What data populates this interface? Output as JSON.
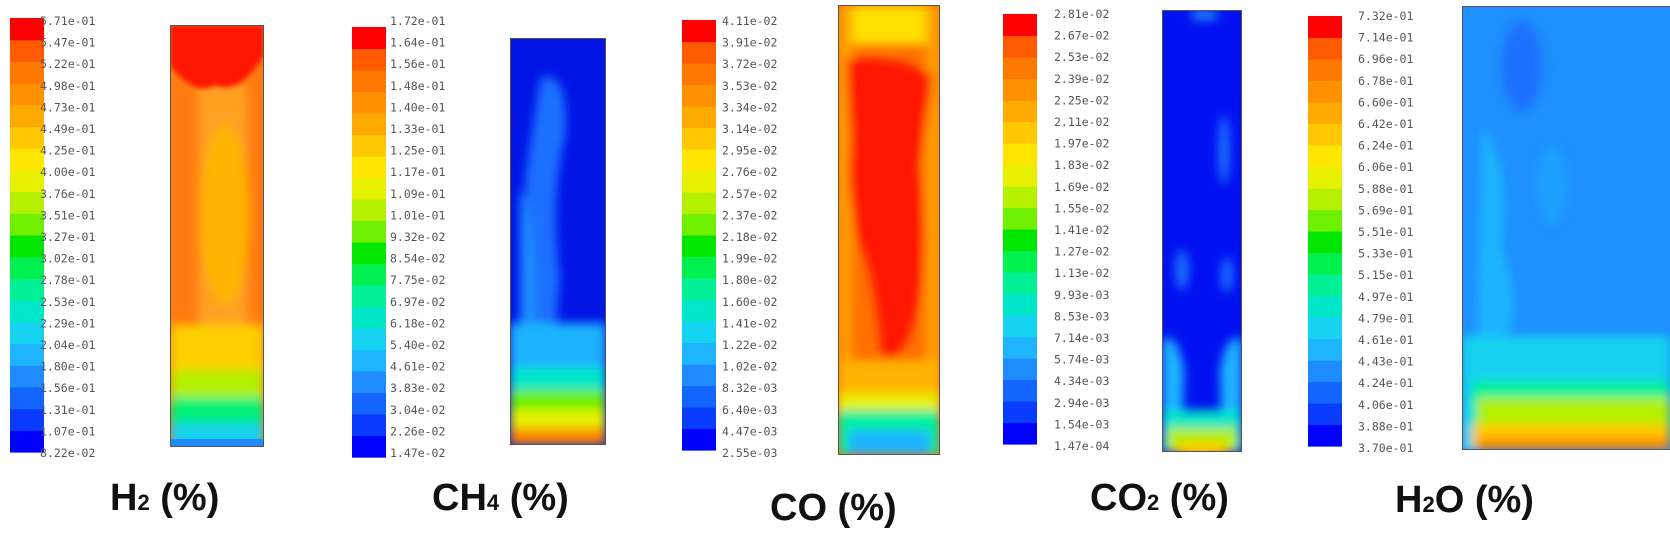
{
  "palette": [
    "#0000ff",
    "#0a3cff",
    "#1464ff",
    "#1e8cff",
    "#1eb4ff",
    "#14d2f0",
    "#00e6c8",
    "#00f096",
    "#00f050",
    "#00e600",
    "#6ef000",
    "#b4f000",
    "#e6f000",
    "#ffe600",
    "#ffc800",
    "#ffaa00",
    "#ff9100",
    "#ff7800",
    "#ff5a00",
    "#ff0000"
  ],
  "panels": [
    {
      "id": "h2",
      "label": {
        "pre": "H",
        "sub": "2",
        "post": " (%)"
      },
      "ticks": [
        "5.71e-01",
        "5.47e-01",
        "5.22e-01",
        "4.98e-01",
        "4.73e-01",
        "4.49e-01",
        "4.25e-01",
        "4.00e-01",
        "3.76e-01",
        "3.51e-01",
        "3.27e-01",
        "3.02e-01",
        "2.78e-01",
        "2.53e-01",
        "2.29e-01",
        "2.04e-01",
        "1.80e-01",
        "1.56e-01",
        "1.31e-01",
        "1.07e-01",
        "8.22e-02"
      ],
      "contour_base": "#ff7a10"
    },
    {
      "id": "ch4",
      "label": {
        "pre": "CH",
        "sub": "4",
        "post": " (%)"
      },
      "ticks": [
        "1.72e-01",
        "1.64e-01",
        "1.56e-01",
        "1.48e-01",
        "1.40e-01",
        "1.33e-01",
        "1.25e-01",
        "1.17e-01",
        "1.09e-01",
        "1.01e-01",
        "9.32e-02",
        "8.54e-02",
        "7.75e-02",
        "6.97e-02",
        "6.18e-02",
        "5.40e-02",
        "4.61e-02",
        "3.83e-02",
        "3.04e-02",
        "2.26e-02",
        "1.47e-02"
      ],
      "contour_base": "#0014e6"
    },
    {
      "id": "co",
      "label": {
        "pre": "CO",
        "sub": "",
        "post": " (%)"
      },
      "ticks": [
        "4.11e-02",
        "3.91e-02",
        "3.72e-02",
        "3.53e-02",
        "3.34e-02",
        "3.14e-02",
        "2.95e-02",
        "2.76e-02",
        "2.57e-02",
        "2.37e-02",
        "2.18e-02",
        "1.99e-02",
        "1.80e-02",
        "1.60e-02",
        "1.41e-02",
        "1.22e-02",
        "1.02e-02",
        "8.32e-03",
        "6.40e-03",
        "4.47e-03",
        "2.55e-03"
      ],
      "contour_base": "#ff6a00"
    },
    {
      "id": "co2",
      "label": {
        "pre": "CO",
        "sub": "2",
        "post": " (%)"
      },
      "ticks": [
        "2.81e-02",
        "2.67e-02",
        "2.53e-02",
        "2.39e-02",
        "2.25e-02",
        "2.11e-02",
        "1.97e-02",
        "1.83e-02",
        "1.69e-02",
        "1.55e-02",
        "1.41e-02",
        "1.27e-02",
        "1.13e-02",
        "9.93e-03",
        "8.53e-03",
        "7.14e-03",
        "5.74e-03",
        "4.34e-03",
        "2.94e-03",
        "1.54e-03",
        "1.47e-04"
      ],
      "contour_base": "#0010f0"
    },
    {
      "id": "h2o",
      "label": {
        "pre": "H",
        "sub": "2",
        "post": "O (%)"
      },
      "ticks": [
        "7.32e-01",
        "7.14e-01",
        "6.96e-01",
        "6.78e-01",
        "6.60e-01",
        "6.42e-01",
        "6.24e-01",
        "6.06e-01",
        "5.88e-01",
        "5.69e-01",
        "5.51e-01",
        "5.33e-01",
        "5.15e-01",
        "4.97e-01",
        "4.79e-01",
        "4.61e-01",
        "4.43e-01",
        "4.24e-01",
        "4.06e-01",
        "3.88e-01",
        "3.70e-01"
      ],
      "contour_base": "#1e90ff"
    }
  ]
}
